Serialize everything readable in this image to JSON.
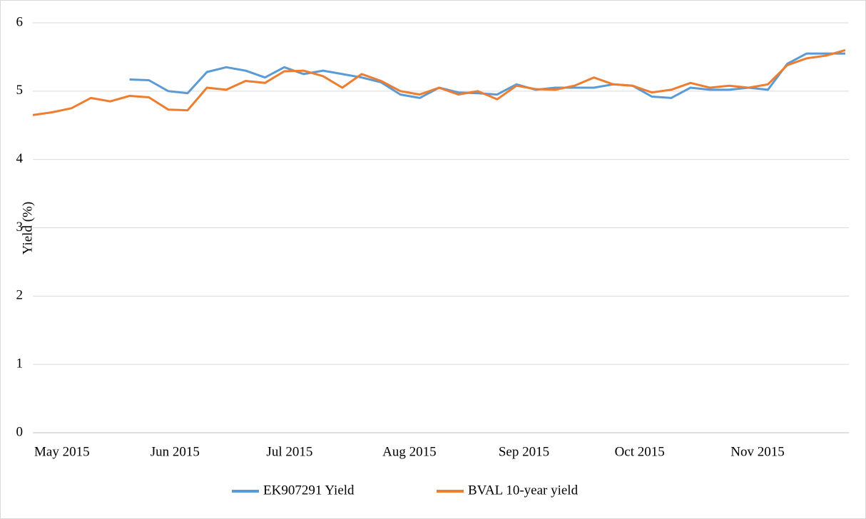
{
  "chart_data": {
    "type": "line",
    "y_label": "Yield (%)",
    "categories": [
      "May 2015",
      null,
      null,
      null,
      null,
      null,
      "Jun 2015",
      null,
      null,
      null,
      null,
      null,
      "Jul 2015",
      null,
      null,
      null,
      null,
      null,
      "Aug 2015",
      null,
      null,
      null,
      null,
      null,
      "Sep 2015",
      null,
      null,
      null,
      null,
      null,
      "Oct 2015",
      null,
      null,
      null,
      null,
      null,
      "Nov 2015",
      null,
      null,
      null,
      null,
      null,
      null
    ],
    "series": [
      {
        "name": "EK907291 Yield",
        "color": "#5b9bd5",
        "values": [
          null,
          null,
          null,
          null,
          null,
          5.17,
          5.16,
          5.0,
          4.97,
          5.28,
          5.35,
          5.3,
          5.2,
          5.35,
          5.25,
          5.3,
          5.25,
          5.2,
          5.13,
          4.95,
          4.9,
          5.05,
          4.98,
          4.97,
          4.95,
          5.1,
          5.02,
          5.05,
          5.05,
          5.05,
          5.1,
          5.08,
          4.92,
          4.9,
          5.05,
          5.02,
          5.02,
          5.05,
          5.02,
          5.4,
          5.55,
          5.55,
          5.55
        ]
      },
      {
        "name": "BVAL 10-year yield",
        "color": "#ed7d31",
        "values": [
          4.65,
          4.69,
          4.75,
          4.9,
          4.85,
          4.93,
          4.91,
          4.73,
          4.72,
          5.05,
          5.02,
          5.15,
          5.12,
          5.29,
          5.3,
          5.22,
          5.05,
          5.25,
          5.15,
          5.0,
          4.95,
          5.05,
          4.95,
          5.0,
          4.88,
          5.08,
          5.03,
          5.02,
          5.08,
          5.2,
          5.1,
          5.08,
          4.98,
          5.02,
          5.12,
          5.05,
          5.08,
          5.05,
          5.1,
          5.38,
          5.48,
          5.52,
          5.6
        ]
      }
    ],
    "ylim": [
      0,
      6
    ],
    "yticks": [
      0,
      1,
      2,
      3,
      4,
      5,
      6
    ],
    "grid": true,
    "legend": "bottom"
  }
}
